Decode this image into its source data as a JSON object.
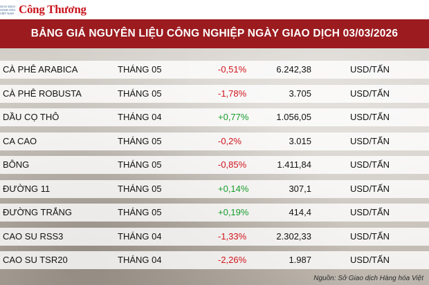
{
  "brand": {
    "small_text": "GIAO DỊCH HÀNG HÓA VIỆT NAM",
    "name": "Công Thương"
  },
  "title": "BẢNG GIÁ NGUYÊN LIỆU CÔNG NGHIỆP NGÀY GIAO DỊCH 03/03/2026",
  "rows": [
    {
      "name": "CÀ PHÊ ARABICA",
      "month": "THÁNG 05",
      "change": "-0,51%",
      "trend": "down",
      "price": "6.242,38",
      "unit": "USD/TẤN"
    },
    {
      "name": "CÀ PHÊ ROBUSTA",
      "month": "THÁNG 05",
      "change": "-1,78%",
      "trend": "down",
      "price": "3.705",
      "unit": "USD/TẤN"
    },
    {
      "name": "DẦU CỌ THÔ",
      "month": "THÁNG 04",
      "change": "+0,77%",
      "trend": "up",
      "price": "1.056,05",
      "unit": "USD/TẤN"
    },
    {
      "name": "CA CAO",
      "month": "THÁNG 05",
      "change": "-0,2%",
      "trend": "down",
      "price": "3.015",
      "unit": "USD/TẤN"
    },
    {
      "name": "BÔNG",
      "month": "THÁNG 05",
      "change": "-0,85%",
      "trend": "down",
      "price": "1.411,84",
      "unit": "USD/TẤN"
    },
    {
      "name": "ĐƯỜNG 11",
      "month": "THÁNG 05",
      "change": "+0,14%",
      "trend": "up",
      "price": "307,1",
      "unit": "USD/TẤN"
    },
    {
      "name": "ĐƯỜNG TRẮNG",
      "month": "THÁNG 05",
      "change": "+0,19%",
      "trend": "up",
      "price": "414,4",
      "unit": "USD/TẤN"
    },
    {
      "name": "CAO SU RSS3",
      "month": "THÁNG 04",
      "change": "-1,33%",
      "trend": "down",
      "price": "2.302,33",
      "unit": "USD/TẤN"
    },
    {
      "name": "CAO SU TSR20",
      "month": "THÁNG 04",
      "change": "-2,26%",
      "trend": "down",
      "price": "1.987",
      "unit": "USD/TẤN"
    }
  ],
  "source": "Nguồn: Sở Giao dịch Hàng hóa Việt",
  "colors": {
    "header_bg": "#9b1b1f",
    "negative": "#d0141b",
    "positive": "#169c2a",
    "brand_red": "#c8161d"
  }
}
